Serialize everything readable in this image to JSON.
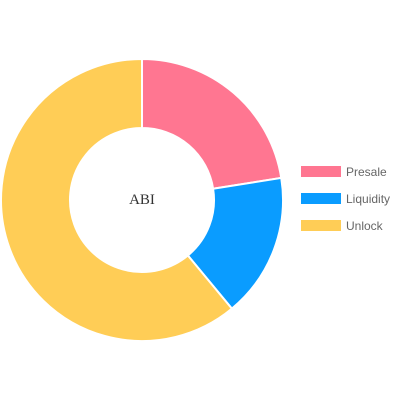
{
  "chart_data": {
    "type": "pie",
    "donut": true,
    "center_label": "ABI",
    "categories": [
      "Presale",
      "Liquidity",
      "Unlock"
    ],
    "values": [
      22.5,
      16.5,
      61
    ],
    "colors": [
      "#ff7691",
      "#0a9cff",
      "#ffcd56"
    ],
    "legend_position": "right"
  }
}
